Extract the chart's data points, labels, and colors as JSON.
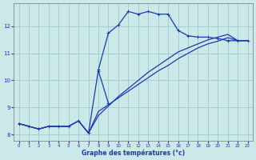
{
  "xlabel": "Graphe des températures (°c)",
  "bg_color": "#cce8e8",
  "grid_color": "#99cccc",
  "line_color": "#1a3ab0",
  "xlim_min": -0.5,
  "xlim_max": 23.5,
  "ylim_min": 7.75,
  "ylim_max": 12.85,
  "xtick_vals": [
    0,
    1,
    2,
    3,
    4,
    5,
    6,
    7,
    8,
    9,
    10,
    11,
    12,
    13,
    14,
    15,
    16,
    17,
    18,
    19,
    20,
    21,
    22,
    23
  ],
  "ytick_vals": [
    8,
    9,
    10,
    11,
    12
  ],
  "line1_x": [
    0,
    1,
    2,
    3,
    4,
    5,
    6,
    7,
    8,
    9,
    10,
    11,
    12,
    13,
    14,
    15,
    16,
    17,
    18,
    19,
    20,
    21,
    22,
    23
  ],
  "line1_y": [
    8.4,
    8.3,
    8.2,
    8.3,
    8.3,
    8.3,
    8.5,
    8.05,
    10.4,
    11.75,
    12.05,
    12.55,
    12.45,
    12.55,
    12.45,
    12.45,
    11.85,
    11.65,
    11.6,
    11.6,
    11.55,
    11.47,
    11.47,
    11.47
  ],
  "line2_x": [
    0,
    1,
    2,
    3,
    4,
    5,
    6,
    7,
    8,
    9,
    10,
    11,
    12,
    13,
    14,
    15,
    16,
    17,
    18,
    19,
    20,
    21,
    22,
    23
  ],
  "line2_y": [
    8.4,
    8.3,
    8.2,
    8.3,
    8.3,
    8.3,
    8.5,
    8.05,
    8.7,
    9.05,
    9.4,
    9.7,
    10.0,
    10.3,
    10.55,
    10.8,
    11.05,
    11.2,
    11.35,
    11.5,
    11.6,
    11.7,
    11.47,
    11.47
  ],
  "line3_x": [
    0,
    1,
    2,
    3,
    4,
    5,
    6,
    7,
    8,
    9,
    10,
    11,
    12,
    13,
    14,
    15,
    16,
    17,
    18,
    19,
    20,
    21,
    22,
    23
  ],
  "line3_y": [
    8.4,
    8.3,
    8.2,
    8.3,
    8.3,
    8.3,
    8.5,
    8.05,
    8.85,
    9.1,
    9.35,
    9.6,
    9.85,
    10.1,
    10.35,
    10.55,
    10.8,
    11.0,
    11.2,
    11.35,
    11.45,
    11.58,
    11.47,
    11.47
  ],
  "line4_x": [
    8,
    9
  ],
  "line4_y": [
    10.35,
    9.15
  ]
}
